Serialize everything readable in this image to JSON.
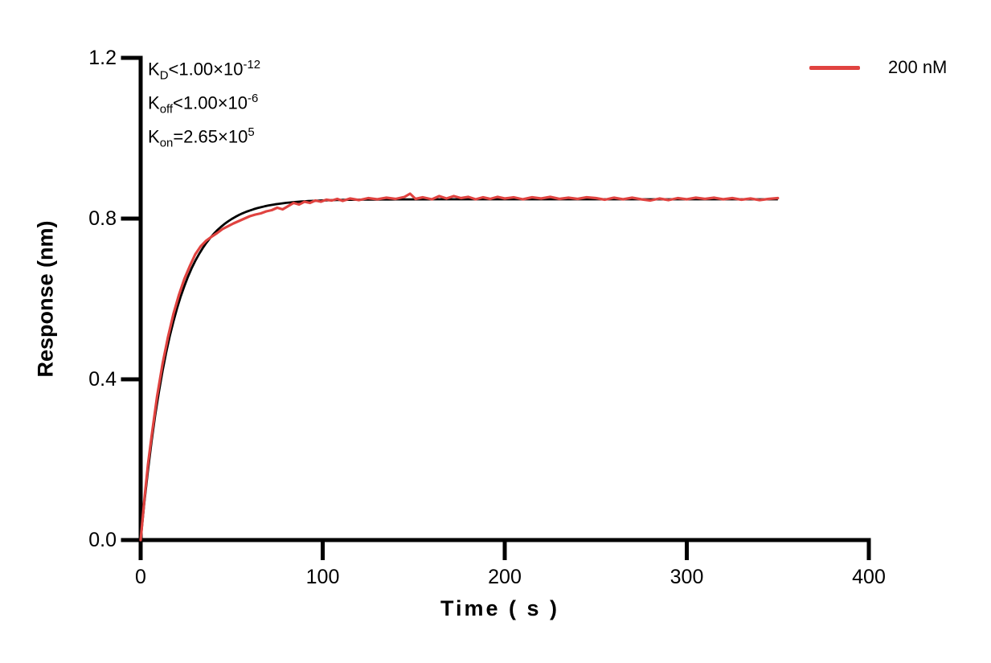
{
  "colors": {
    "background": "#FFFFFF",
    "axis": "#000000",
    "fit_line": "#000000",
    "trace": "#E04340"
  },
  "legend": {
    "label": "200 nM",
    "color": "#E04340"
  },
  "chart_data": {
    "type": "line",
    "title": "",
    "xlabel": "Time ( s )",
    "ylabel": "Response (nm)",
    "xlim": [
      0,
      400
    ],
    "ylim": [
      0,
      1.2
    ],
    "xticks": [
      "0",
      "100",
      "200",
      "300",
      "400"
    ],
    "xtick_values": [
      0,
      100,
      200,
      300,
      400
    ],
    "yticks": [
      "0.0",
      "0.4",
      "0.8",
      "1.2"
    ],
    "ytick_values": [
      0,
      0.4,
      0.8,
      1.2
    ],
    "grid": false,
    "legend_position": "top-right",
    "annotations": [
      {
        "base": "K",
        "sub": "D",
        "rel_value": "<1.00×10",
        "exp": "-12"
      },
      {
        "base": "K",
        "sub": "off",
        "rel_value": "<1.00×10",
        "exp": "-6"
      },
      {
        "base": "K",
        "sub": "on",
        "rel_value": "=2.65×10",
        "exp": "5"
      }
    ],
    "series": [
      {
        "name": "200 nM",
        "role": "measured",
        "color": "#E04340",
        "points": [
          [
            0,
            0.0
          ],
          [
            2,
            0.098
          ],
          [
            4,
            0.188
          ],
          [
            6,
            0.258
          ],
          [
            9,
            0.357
          ],
          [
            12,
            0.438
          ],
          [
            15,
            0.505
          ],
          [
            18,
            0.563
          ],
          [
            21,
            0.61
          ],
          [
            24,
            0.65
          ],
          [
            27,
            0.682
          ],
          [
            30,
            0.711
          ],
          [
            33,
            0.731
          ],
          [
            36,
            0.745
          ],
          [
            39,
            0.755
          ],
          [
            42,
            0.764
          ],
          [
            45,
            0.774
          ],
          [
            48,
            0.781
          ],
          [
            51,
            0.788
          ],
          [
            54,
            0.794
          ],
          [
            57,
            0.8
          ],
          [
            60,
            0.806
          ],
          [
            63,
            0.81
          ],
          [
            66,
            0.813
          ],
          [
            69,
            0.818
          ],
          [
            72,
            0.821
          ],
          [
            75,
            0.827
          ],
          [
            78,
            0.823
          ],
          [
            81,
            0.831
          ],
          [
            84,
            0.839
          ],
          [
            87,
            0.835
          ],
          [
            90,
            0.842
          ],
          [
            93,
            0.839
          ],
          [
            96,
            0.845
          ],
          [
            99,
            0.842
          ],
          [
            102,
            0.847
          ],
          [
            105,
            0.845
          ],
          [
            108,
            0.849
          ],
          [
            111,
            0.844
          ],
          [
            115,
            0.85
          ],
          [
            120,
            0.846
          ],
          [
            125,
            0.851
          ],
          [
            130,
            0.848
          ],
          [
            135,
            0.852
          ],
          [
            140,
            0.849
          ],
          [
            145,
            0.854
          ],
          [
            148,
            0.862
          ],
          [
            151,
            0.849
          ],
          [
            155,
            0.853
          ],
          [
            160,
            0.848
          ],
          [
            164,
            0.856
          ],
          [
            168,
            0.85
          ],
          [
            172,
            0.856
          ],
          [
            176,
            0.851
          ],
          [
            180,
            0.854
          ],
          [
            184,
            0.848
          ],
          [
            188,
            0.853
          ],
          [
            192,
            0.849
          ],
          [
            196,
            0.854
          ],
          [
            200,
            0.85
          ],
          [
            205,
            0.853
          ],
          [
            210,
            0.848
          ],
          [
            215,
            0.853
          ],
          [
            220,
            0.85
          ],
          [
            225,
            0.854
          ],
          [
            230,
            0.849
          ],
          [
            235,
            0.852
          ],
          [
            240,
            0.849
          ],
          [
            245,
            0.853
          ],
          [
            250,
            0.851
          ],
          [
            255,
            0.847
          ],
          [
            260,
            0.852
          ],
          [
            265,
            0.848
          ],
          [
            270,
            0.852
          ],
          [
            275,
            0.848
          ],
          [
            280,
            0.845
          ],
          [
            285,
            0.85
          ],
          [
            290,
            0.846
          ],
          [
            295,
            0.851
          ],
          [
            300,
            0.848
          ],
          [
            305,
            0.852
          ],
          [
            310,
            0.849
          ],
          [
            315,
            0.852
          ],
          [
            320,
            0.848
          ],
          [
            325,
            0.851
          ],
          [
            330,
            0.847
          ],
          [
            335,
            0.85
          ],
          [
            340,
            0.846
          ],
          [
            345,
            0.849
          ],
          [
            350,
            0.851
          ]
        ]
      },
      {
        "name": "fit",
        "role": "fit",
        "color": "#000000",
        "model": "one-phase-association",
        "plateau": 0.848,
        "k_obs": 0.057,
        "t_start": 0,
        "t_end": 350,
        "t_step": 2
      }
    ]
  }
}
